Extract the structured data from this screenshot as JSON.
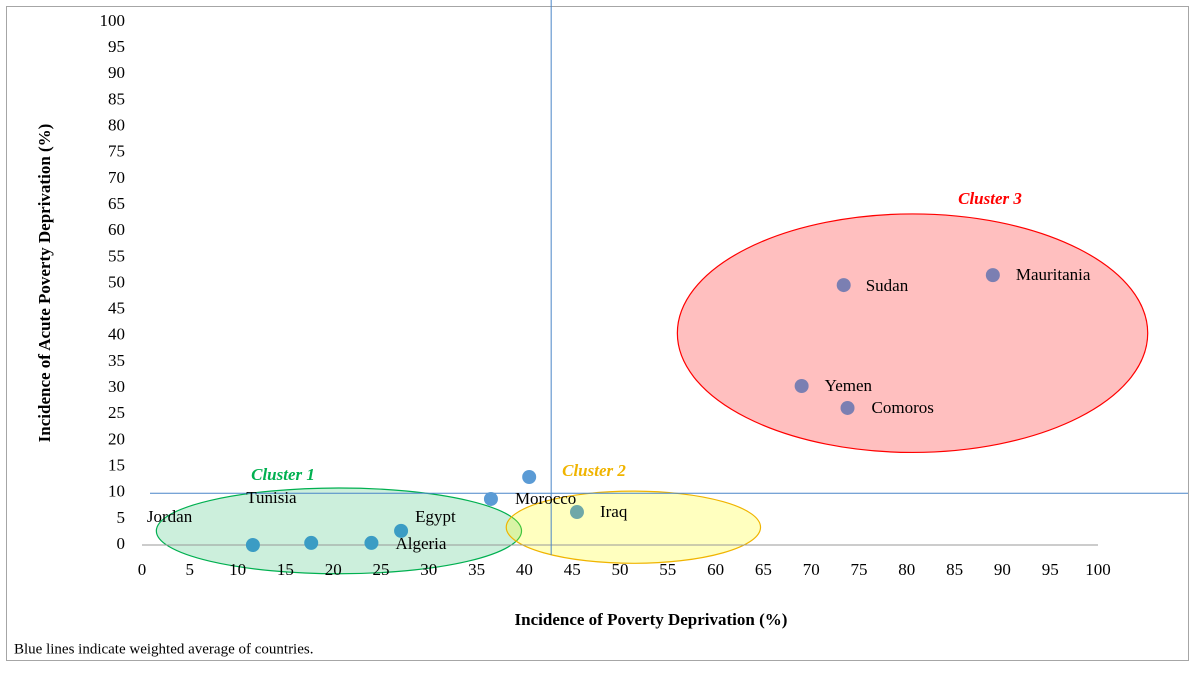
{
  "chart_data": {
    "type": "scatter",
    "x_label": "Incidence of Poverty Deprivation (%)",
    "y_label": "Incidence of Acute Poverty Deprivation (%)",
    "note": "Blue lines indicate weighted average of countries.",
    "xlim": [
      0,
      100
    ],
    "xticks": [
      0,
      5,
      10,
      15,
      20,
      25,
      30,
      35,
      40,
      45,
      50,
      55,
      60,
      65,
      70,
      75,
      80,
      85,
      90,
      95,
      100
    ],
    "ylim": [
      0,
      100
    ],
    "yticks": [
      0,
      5,
      10,
      15,
      20,
      25,
      30,
      35,
      40,
      45,
      50,
      55,
      60,
      65,
      70,
      75,
      80,
      85,
      90,
      95,
      100
    ],
    "points": {
      "labels": [
        "Jordan",
        "Tunisia",
        "Algeria",
        "Egypt",
        "Morocco",
        null,
        "Iraq",
        "Yemen",
        "Sudan",
        "Comoros",
        "Mauritania"
      ],
      "x": [
        11.6,
        17.7,
        24.0,
        27.1,
        36.5,
        40.5,
        45.5,
        69.0,
        73.4,
        73.8,
        89.0
      ],
      "y": [
        0,
        0.4,
        0.4,
        2.7,
        8.8,
        13.0,
        6.3,
        30.4,
        49.7,
        26.2,
        51.6
      ],
      "colors": [
        "#3b9cc4",
        "#3b9cc4",
        "#3b9cc4",
        "#3b9cc4",
        "#5b9bd5",
        "#5b9bd5",
        "#6fa8a8",
        "#7b7fb2",
        "#7b7fb2",
        "#7b7fb2",
        "#7b7fb2"
      ]
    },
    "reference_lines": {
      "x": 42.8,
      "y": 9.9,
      "color": "#4a86c8"
    },
    "clusters": [
      {
        "name": "Cluster 1",
        "color": "#00b050"
      },
      {
        "name": "Cluster 2",
        "color": "#f0b400"
      },
      {
        "name": "Cluster 3",
        "color": "#ff0000"
      }
    ]
  }
}
